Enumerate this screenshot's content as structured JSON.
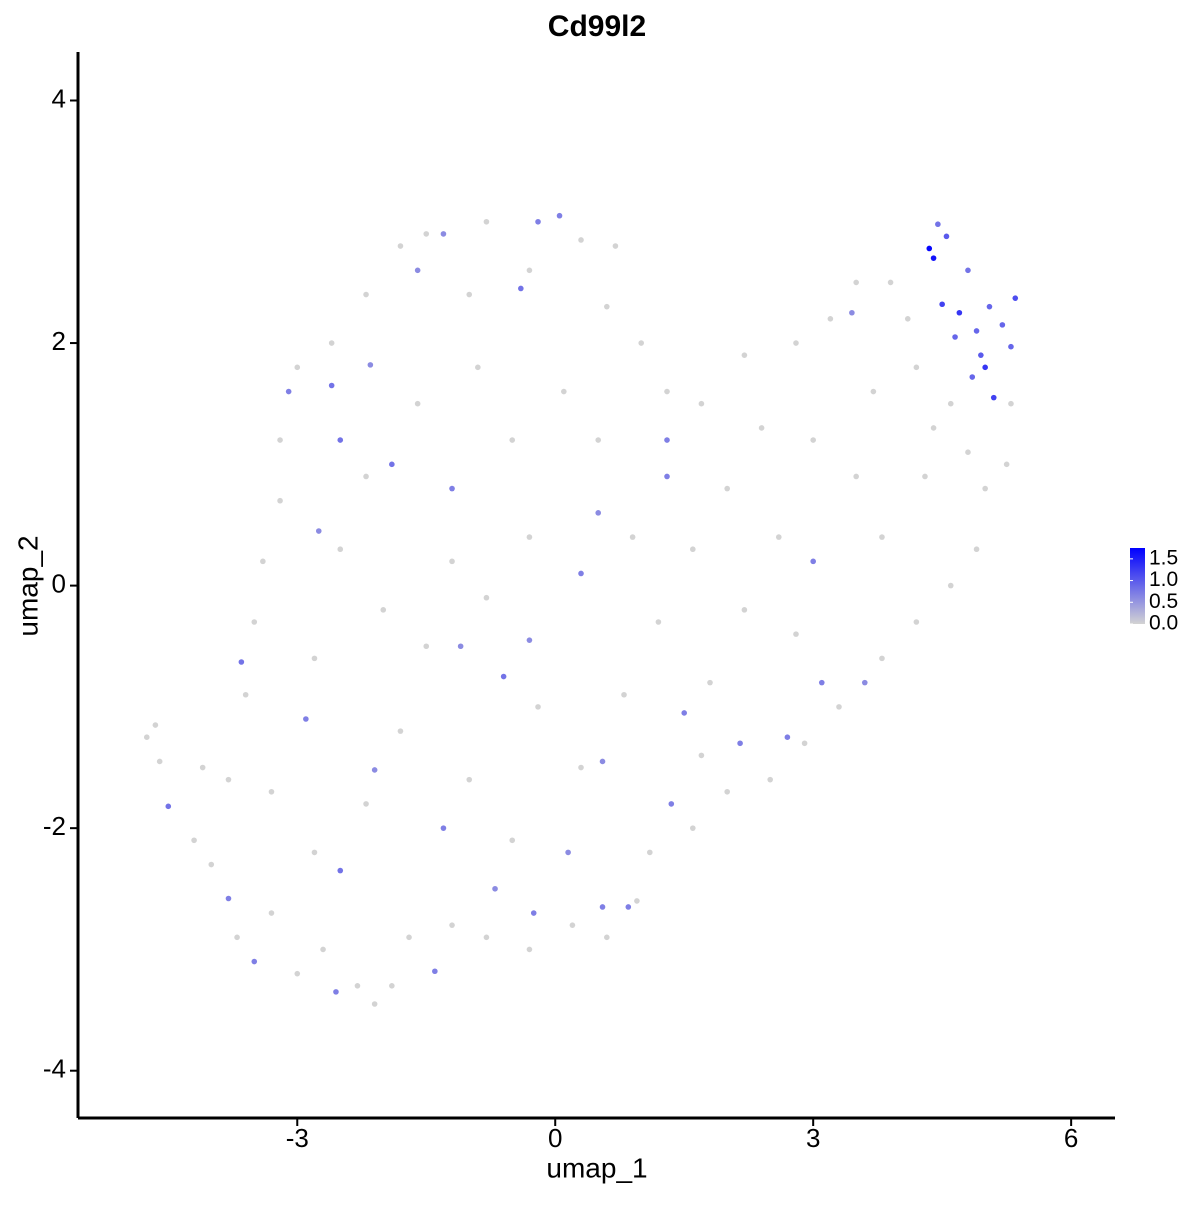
{
  "chart_data": {
    "type": "scatter",
    "title": "Cd99l2",
    "x_label": "umap_1",
    "y_label": "umap_2",
    "xlim": [
      -5.55,
      6.51
    ],
    "ylim": [
      -4.39,
      4.4
    ],
    "xticks": [
      -3,
      0,
      3,
      6
    ],
    "yticks": [
      -4,
      -2,
      0,
      2,
      4
    ],
    "grid": false,
    "colorscale": {
      "low": "#d3d3d3",
      "high": "#0000ff",
      "limits": [
        0,
        1.75
      ],
      "ticks": [
        {
          "value": 0,
          "label": "0.0"
        },
        0.5,
        {
          "value": 1,
          "label": "1.0"
        },
        1.5
      ]
    },
    "x": [
      -4.75,
      -4.65,
      -4.6,
      -4.1,
      -4.2,
      -4.0,
      -3.7,
      -3.3,
      -3.0,
      -2.7,
      -2.3,
      -2.1,
      -1.9,
      -1.7,
      -1.2,
      -0.8,
      -0.3,
      0.2,
      0.6,
      0.95,
      1.1,
      1.6,
      2.0,
      2.5,
      2.9,
      3.3,
      3.8,
      4.2,
      4.6,
      4.9,
      5.0,
      5.25,
      5.3,
      4.6,
      4.2,
      3.9,
      3.5,
      3.2,
      2.8,
      2.2,
      1.7,
      1.3,
      1.0,
      0.7,
      0.3,
      -0.3,
      -0.8,
      -1.5,
      -1.8,
      -2.2,
      -2.6,
      -3.0,
      -3.2,
      -3.2,
      -3.4,
      -3.5,
      -3.6,
      -3.3,
      -2.8,
      -2.2,
      -1.8,
      -1.5,
      -2.0,
      -2.5,
      -2.2,
      -1.6,
      -0.9,
      -0.5,
      -0.3,
      -0.8,
      -0.2,
      0.3,
      0.8,
      1.2,
      1.6,
      2.0,
      2.4,
      3.0,
      3.5,
      3.8,
      4.3,
      4.4,
      2.6,
      2.2,
      2.8,
      1.8,
      0.9,
      0.1,
      0.5,
      -1.2,
      -2.8,
      -3.8,
      -1.0,
      -0.5,
      1.7,
      0.6,
      -1.0,
      4.1,
      4.8,
      3.7,
      -3.65,
      -4.5,
      -3.8,
      -3.5,
      -2.5,
      -1.4,
      -2.55,
      -2.9,
      -3.1,
      -2.6,
      -2.5,
      -1.9,
      -1.2,
      -1.1,
      -0.6,
      -0.3,
      0.3,
      1.3,
      1.3,
      -0.4,
      -0.2,
      0.05,
      -1.3,
      -1.6,
      3.45,
      3.0,
      3.1,
      3.6,
      2.7,
      1.5,
      2.15,
      0.55,
      0.85,
      -0.25,
      -1.3,
      -2.1,
      0.55,
      1.35,
      0.15,
      -0.7,
      0.5,
      -2.15,
      -2.75,
      4.8,
      4.45,
      4.55,
      5.2,
      4.65,
      5.3,
      4.95,
      4.85,
      5.05,
      4.9,
      5.35,
      5.1,
      4.5,
      4.7,
      5.0,
      4.4,
      4.35
    ],
    "y": [
      -1.25,
      -1.15,
      -1.45,
      -1.5,
      -2.1,
      -2.3,
      -2.9,
      -2.7,
      -3.2,
      -3.0,
      -3.3,
      -3.45,
      -3.3,
      -2.9,
      -2.8,
      -2.9,
      -3.0,
      -2.8,
      -2.9,
      -2.6,
      -2.2,
      -2.0,
      -1.7,
      -1.6,
      -1.3,
      -1.0,
      -0.6,
      -0.3,
      0.0,
      0.3,
      0.8,
      1.0,
      1.5,
      1.5,
      1.8,
      2.5,
      2.5,
      2.2,
      2.0,
      1.9,
      1.5,
      1.6,
      2.0,
      2.8,
      2.85,
      2.6,
      3.0,
      2.9,
      2.8,
      2.4,
      2.0,
      1.8,
      1.2,
      0.7,
      0.2,
      -0.3,
      -0.9,
      -1.7,
      -2.2,
      -1.8,
      -1.2,
      -0.5,
      -0.2,
      0.3,
      0.9,
      1.5,
      1.8,
      1.2,
      0.4,
      -0.1,
      -1.0,
      -1.5,
      -0.9,
      -0.3,
      0.3,
      0.8,
      1.3,
      1.2,
      0.9,
      0.4,
      0.9,
      1.3,
      0.4,
      -0.2,
      -0.4,
      -0.8,
      0.4,
      1.6,
      1.2,
      0.2,
      -0.6,
      -1.6,
      -1.6,
      -2.1,
      -1.4,
      2.3,
      2.4,
      2.2,
      1.1,
      1.6,
      -0.63,
      -1.82,
      -2.58,
      -3.1,
      -2.35,
      -3.18,
      -3.35,
      -1.1,
      1.6,
      1.65,
      1.2,
      1.0,
      0.8,
      -0.5,
      -0.75,
      -0.45,
      0.1,
      1.2,
      0.9,
      2.45,
      3.0,
      3.05,
      2.9,
      2.6,
      2.25,
      0.2,
      -0.8,
      -0.8,
      -1.25,
      -1.05,
      -1.3,
      -2.65,
      -2.65,
      -2.7,
      -2.0,
      -1.52,
      -1.45,
      -1.8,
      -2.2,
      -2.5,
      0.6,
      1.82,
      0.45,
      2.6,
      2.98,
      2.88,
      2.15,
      2.05,
      1.97,
      1.9,
      1.72,
      2.3,
      2.1,
      2.37,
      1.55,
      2.32,
      2.25,
      1.8,
      2.7,
      2.78
    ],
    "values": [
      0,
      0,
      0,
      0,
      0,
      0,
      0,
      0,
      0,
      0,
      0,
      0,
      0,
      0,
      0,
      0,
      0,
      0,
      0,
      0,
      0,
      0,
      0,
      0,
      0,
      0,
      0,
      0,
      0,
      0,
      0,
      0,
      0,
      0,
      0,
      0,
      0,
      0,
      0,
      0,
      0,
      0,
      0,
      0,
      0,
      0,
      0,
      0,
      0,
      0,
      0,
      0,
      0,
      0,
      0,
      0,
      0,
      0,
      0,
      0,
      0,
      0,
      0,
      0,
      0,
      0,
      0,
      0,
      0,
      0,
      0,
      0,
      0,
      0,
      0,
      0,
      0,
      0,
      0,
      0,
      0,
      0,
      0,
      0,
      0,
      0,
      0,
      0,
      0,
      0,
      0,
      0,
      0,
      0,
      0,
      0,
      0,
      0,
      0,
      0,
      0.8,
      0.8,
      0.7,
      0.7,
      0.8,
      0.7,
      0.7,
      0.7,
      0.7,
      0.8,
      0.8,
      0.8,
      0.7,
      0.6,
      0.8,
      0.6,
      0.7,
      0.7,
      0.7,
      0.8,
      0.7,
      0.7,
      0.6,
      0.6,
      0.6,
      0.7,
      0.7,
      0.6,
      0.7,
      0.7,
      0.7,
      0.7,
      0.7,
      0.7,
      0.7,
      0.6,
      0.6,
      0.7,
      0.6,
      0.6,
      0.6,
      0.6,
      0.6,
      0.8,
      0.8,
      1.0,
      0.9,
      0.9,
      0.9,
      1.0,
      0.9,
      0.9,
      0.9,
      1.1,
      1.2,
      1.2,
      1.3,
      1.3,
      1.6,
      1.7
    ]
  }
}
